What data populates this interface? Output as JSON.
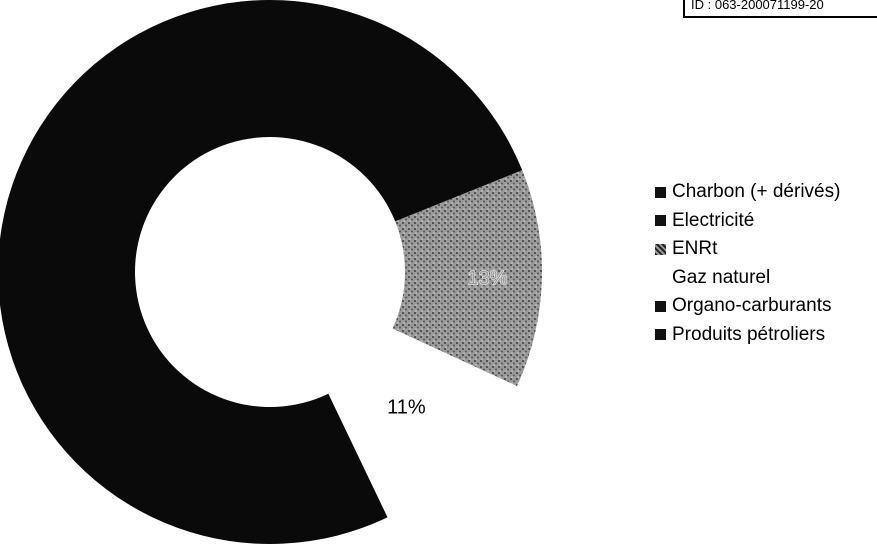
{
  "document_id": "ID : 063-200071199-20",
  "chart_data": {
    "type": "pie",
    "style": "donut",
    "categories": [
      "Charbon (+ dérivés)",
      "Electricité",
      "ENRt",
      "Gaz naturel",
      "Organo-carburants",
      "Produits pétroliers"
    ],
    "values": [
      0,
      0,
      13,
      11,
      0,
      76
    ],
    "data_labels": [
      "",
      "",
      "13%",
      "11%",
      "",
      ""
    ],
    "colors": [
      "#111111",
      "#111111",
      "#8c8c8c",
      "#ffffff",
      "#222222",
      "#0a0a0a"
    ],
    "legend_position": "right",
    "title": ""
  }
}
